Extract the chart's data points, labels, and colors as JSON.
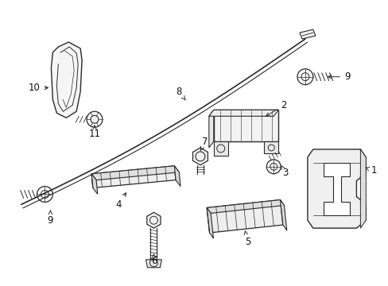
{
  "bg_color": "#ffffff",
  "line_color": "#2a2a2a",
  "label_color": "#111111",
  "label_fontsize": 8.5,
  "figsize": [
    4.89,
    3.6
  ],
  "dpi": 100,
  "xlim": [
    0,
    489
  ],
  "ylim": [
    0,
    360
  ]
}
